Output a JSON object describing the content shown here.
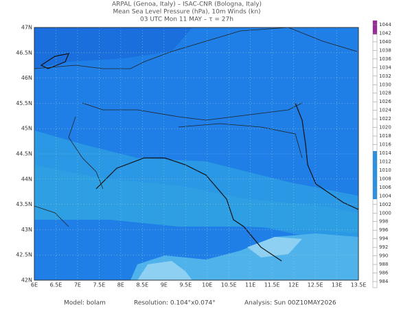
{
  "header": {
    "lines": [
      "ARPAL (Genoa, Italy)  –  ISAC-CNR (Bologna, Italy)",
      "Mean Sea Level Pressure (hPa), 10m Winds (kn)",
      "03 UTC Mon 11 MAY  –  τ = 27h"
    ]
  },
  "map": {
    "lat_labels": [
      "47N",
      "46.5N",
      "46N",
      "45.5N",
      "45N",
      "44.5N",
      "44N",
      "43.5N",
      "43N",
      "42.5N",
      "42N"
    ],
    "lon_labels": [
      "6E",
      "6.5E",
      "7E",
      "7.5E",
      "8E",
      "8.5E",
      "9E",
      "9.5E",
      "10E",
      "10.5E",
      "11E",
      "11.5E",
      "12E",
      "12.5E",
      "13E",
      "13.5E"
    ]
  },
  "colorbar": {
    "levels": [
      1044,
      1042,
      1040,
      1038,
      1036,
      1034,
      1032,
      1030,
      1028,
      1026,
      1024,
      1022,
      1020,
      1018,
      1016,
      1014,
      1012,
      1010,
      1008,
      1006,
      1004,
      1002,
      1000,
      998,
      996,
      994,
      992,
      990,
      988,
      986,
      984
    ]
  },
  "footer": {
    "model": "Model: bolam",
    "resolution": "Resolution: 0.104°x0.074°",
    "analysis": "Analysis: Sun 00Z10MAY2026"
  }
}
